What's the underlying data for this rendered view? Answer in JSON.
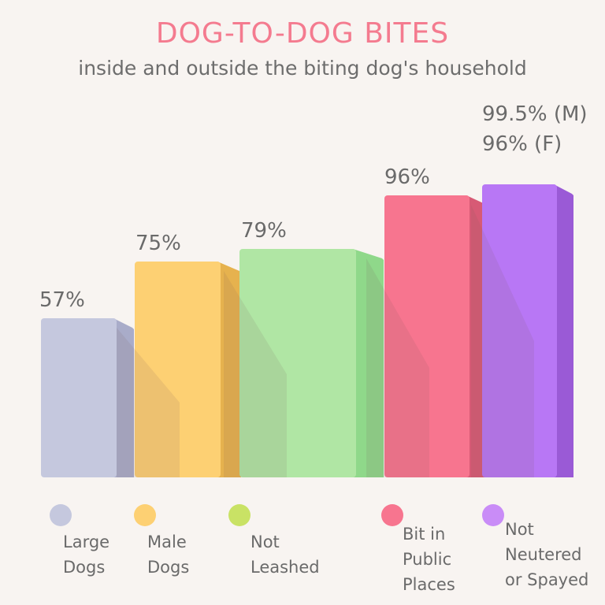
{
  "chart_data": {
    "type": "bar",
    "title": "DOG-TO-DOG BITES",
    "subtitle": "inside and outside the biting dog's household",
    "categories": [
      "Large Dogs",
      "Male Dogs",
      "Not Leashed",
      "Bit in Public Places",
      "Not Neutered or Spayed"
    ],
    "values": [
      57,
      75,
      79,
      96,
      99.5
    ],
    "value_labels": [
      "57%",
      "75%",
      "79%",
      "96%",
      "99.5% (M)"
    ],
    "extra_label": "96% (F)",
    "legend_labels": [
      "Large\nDogs",
      "Male\nDogs",
      "Not\nLeashed",
      "Bit in\nPublic\nPlaces",
      "Not\nNeutered\nor Spayed"
    ],
    "colors": [
      "#c5c8de",
      "#fdd073",
      "#b0e6a4",
      "#f7758f",
      "#b877f5"
    ],
    "side_colors": [
      "#a9acc9",
      "#e6b24e",
      "#8fd88a",
      "#d75a75",
      "#9a5ad6"
    ],
    "legend_colors": [
      "#c5c8de",
      "#fdd073",
      "#c9e265",
      "#f7758f",
      "#c98cf7"
    ],
    "xlabel": "",
    "ylabel": "",
    "ylim": [
      0,
      100
    ]
  }
}
